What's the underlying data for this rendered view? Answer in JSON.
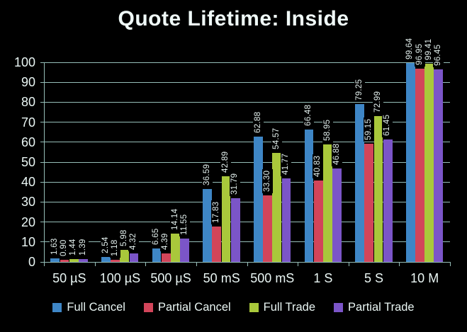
{
  "chart_data": {
    "type": "bar",
    "title": "Quote Lifetime: Inside",
    "categories": [
      "50 µS",
      "100 µS",
      "500 µS",
      "50 mS",
      "500 mS",
      "1 S",
      "5 S",
      "10 M"
    ],
    "series": [
      {
        "name": "Full Cancel",
        "color": "#3e86c6",
        "values": [
          1.63,
          2.54,
          6.65,
          36.59,
          62.88,
          66.48,
          79.25,
          99.64
        ]
      },
      {
        "name": "Partial Cancel",
        "color": "#d2455a",
        "values": [
          0.9,
          1.18,
          4.39,
          17.83,
          33.3,
          40.83,
          59.15,
          96.95
        ]
      },
      {
        "name": "Full Trade",
        "color": "#a9c83b",
        "values": [
          1.44,
          5.98,
          14.14,
          42.89,
          54.57,
          58.95,
          72.99,
          99.41
        ]
      },
      {
        "name": "Partial Trade",
        "color": "#7b55c8",
        "values": [
          1.39,
          4.32,
          11.55,
          31.79,
          41.77,
          46.88,
          61.45,
          96.45
        ]
      }
    ],
    "xlabel": "",
    "ylabel": "",
    "ylim": [
      0,
      100
    ],
    "yticks": [
      0,
      10,
      20,
      30,
      40,
      50,
      60,
      70,
      80,
      90,
      100
    ],
    "grid": true,
    "legend_position": "bottom",
    "value_labels": "outside-end, rotated 270, 2 decimals, black background",
    "background_color": "#000000",
    "grid_color": "#96beb8",
    "text_color": "#eaf6f4"
  }
}
